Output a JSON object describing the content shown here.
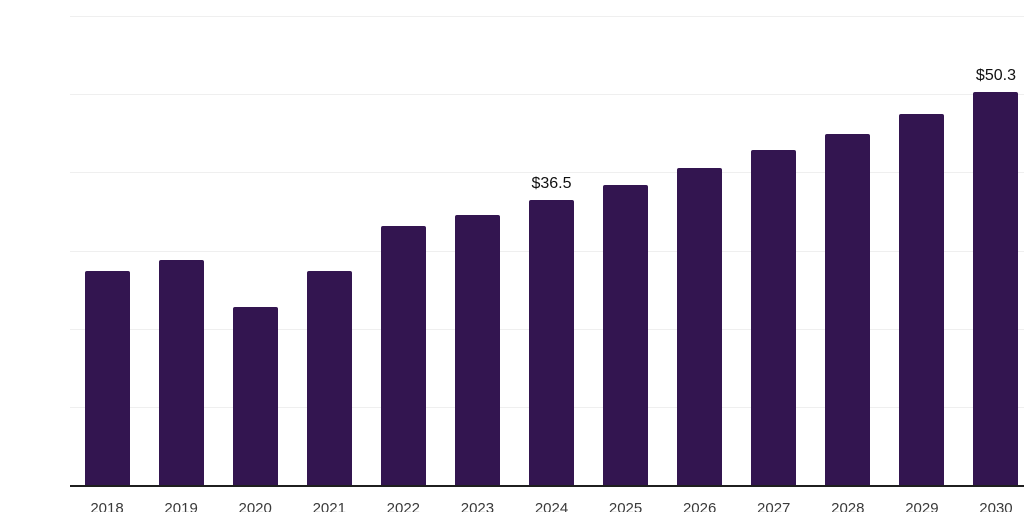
{
  "chart_data": {
    "type": "bar",
    "title": "",
    "xlabel": "",
    "ylabel": "",
    "categories": [
      "2018",
      "2019",
      "2020",
      "2021",
      "2022",
      "2023",
      "2024",
      "2025",
      "2026",
      "2027",
      "2028",
      "2029",
      "2030"
    ],
    "values": [
      27.5,
      28.8,
      22.9,
      27.4,
      33.2,
      34.6,
      36.5,
      38.4,
      40.6,
      42.9,
      45.0,
      47.5,
      50.3
    ],
    "value_labels": [
      null,
      null,
      null,
      null,
      null,
      null,
      "$36.5",
      null,
      null,
      null,
      null,
      null,
      "$50.3"
    ],
    "ylim": [
      0,
      60
    ],
    "gridline_values": [
      10,
      20,
      30,
      40,
      50,
      60
    ],
    "grid": "horizontal",
    "legend_position": "none",
    "y_axis_tick_labels_visible": false,
    "colors": {
      "bar": "#331550",
      "gridline": "#efefef",
      "axis_line": "#1f1f1f",
      "value_label": "#111111",
      "tick_label": "#3a3a3a",
      "background": "#ffffff"
    }
  }
}
